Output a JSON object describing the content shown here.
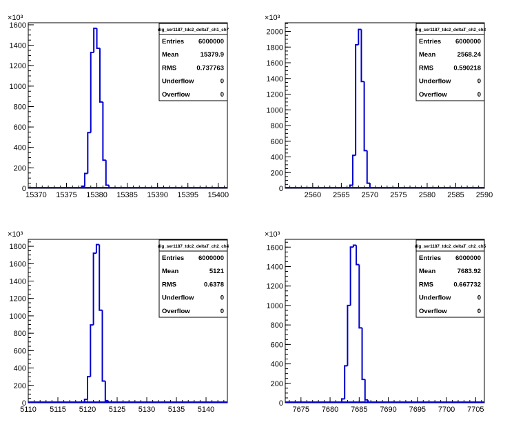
{
  "exponent_label": "×10³",
  "colors": {
    "histogram": "#0000cc",
    "axis": "#000000",
    "frame": "#000000",
    "background": "#ffffff"
  },
  "stats_labels": [
    "Entries",
    "Mean",
    "RMS",
    "Underflow",
    "Overflow"
  ],
  "chart_data": [
    {
      "type": "histogram",
      "title": "dig_ser1187_tdc2_deltaT_ch1_ch7",
      "stats": [
        "6000000",
        "15379.9",
        "0.737763",
        "0",
        "0"
      ],
      "xlim": [
        15368.7,
        15401.5
      ],
      "ylim": [
        0,
        1620
      ],
      "x_ticks": [
        15370,
        15375,
        15380,
        15385,
        15390,
        15395,
        15400
      ],
      "y_ticks": [
        0,
        200,
        400,
        600,
        800,
        1000,
        1200,
        1400,
        1600
      ],
      "y_ticks_minor_step": 50,
      "x_ticks_minor_step": 1,
      "bin_width": 0.5,
      "bins": [
        {
          "x": 15377.5,
          "y": 20
        },
        {
          "x": 15378.0,
          "y": 145
        },
        {
          "x": 15378.5,
          "y": 545
        },
        {
          "x": 15379.0,
          "y": 1330
        },
        {
          "x": 15379.5,
          "y": 1565
        },
        {
          "x": 15380.0,
          "y": 1370
        },
        {
          "x": 15380.5,
          "y": 845
        },
        {
          "x": 15381.0,
          "y": 275
        },
        {
          "x": 15381.5,
          "y": 30
        }
      ]
    },
    {
      "type": "histogram",
      "title": "dig_ser1187_tdc2_deltaT_ch2_ch3",
      "stats": [
        "6000000",
        "2568.24",
        "0.590218",
        "0",
        "0"
      ],
      "xlim": [
        2555.2,
        2590.0
      ],
      "ylim": [
        0,
        2110
      ],
      "x_ticks": [
        2560,
        2565,
        2570,
        2575,
        2580,
        2585,
        2590
      ],
      "y_ticks": [
        0,
        200,
        400,
        600,
        800,
        1000,
        1200,
        1400,
        1600,
        1800,
        2000
      ],
      "y_ticks_minor_step": 50,
      "x_ticks_minor_step": 1,
      "bin_width": 0.5,
      "bins": [
        {
          "x": 2566.5,
          "y": 40
        },
        {
          "x": 2567.0,
          "y": 420
        },
        {
          "x": 2567.5,
          "y": 1830
        },
        {
          "x": 2568.0,
          "y": 2025
        },
        {
          "x": 2568.5,
          "y": 1360
        },
        {
          "x": 2569.0,
          "y": 480
        },
        {
          "x": 2569.5,
          "y": 65
        }
      ]
    },
    {
      "type": "histogram",
      "title": "dig_ser1187_tdc2_deltaT_ch2_ch4",
      "stats": [
        "6000000",
        "5121",
        "0.6378",
        "0",
        "0"
      ],
      "xlim": [
        5110.0,
        5143.6
      ],
      "ylim": [
        0,
        1880
      ],
      "x_ticks": [
        5110,
        5115,
        5120,
        5125,
        5130,
        5135,
        5140
      ],
      "y_ticks": [
        0,
        200,
        400,
        600,
        800,
        1000,
        1200,
        1400,
        1600,
        1800
      ],
      "y_ticks_minor_step": 50,
      "x_ticks_minor_step": 1,
      "bin_width": 0.5,
      "bins": [
        {
          "x": 5119.5,
          "y": 40
        },
        {
          "x": 5120.0,
          "y": 300
        },
        {
          "x": 5120.5,
          "y": 895
        },
        {
          "x": 5121.0,
          "y": 1720
        },
        {
          "x": 5121.5,
          "y": 1820
        },
        {
          "x": 5122.0,
          "y": 1065
        },
        {
          "x": 5122.5,
          "y": 250
        },
        {
          "x": 5123.0,
          "y": 25
        }
      ]
    },
    {
      "type": "histogram",
      "title": "dig_ser1187_tdc2_deltaT_ch2_ch5",
      "stats": [
        "6000000",
        "7683.92",
        "0.667732",
        "0",
        "0"
      ],
      "xlim": [
        7672.3,
        7706.5
      ],
      "ylim": [
        0,
        1680
      ],
      "x_ticks": [
        7675,
        7680,
        7685,
        7690,
        7695,
        7700,
        7705
      ],
      "y_ticks": [
        0,
        200,
        400,
        600,
        800,
        1000,
        1200,
        1400,
        1600
      ],
      "y_ticks_minor_step": 50,
      "x_ticks_minor_step": 1,
      "bin_width": 0.5,
      "bins": [
        {
          "x": 7682.0,
          "y": 40
        },
        {
          "x": 7682.5,
          "y": 380
        },
        {
          "x": 7683.0,
          "y": 1000
        },
        {
          "x": 7683.5,
          "y": 1600
        },
        {
          "x": 7684.0,
          "y": 1620
        },
        {
          "x": 7684.5,
          "y": 1420
        },
        {
          "x": 7685.0,
          "y": 770
        },
        {
          "x": 7685.5,
          "y": 240
        },
        {
          "x": 7686.0,
          "y": 30
        }
      ]
    }
  ]
}
